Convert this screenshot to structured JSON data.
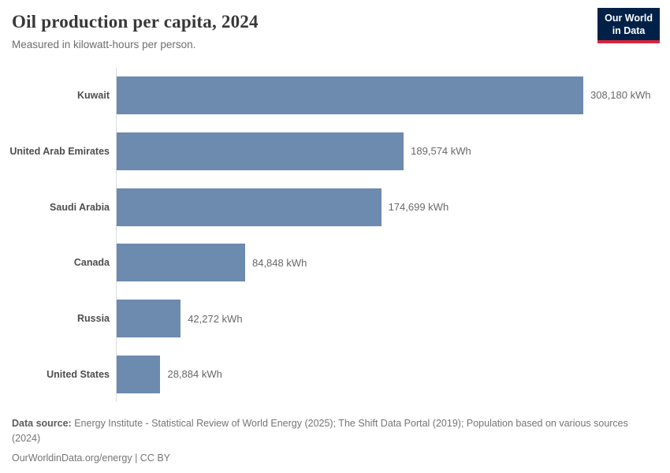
{
  "header": {
    "title": "Oil production per capita, 2024",
    "subtitle": "Measured in kilowatt-hours per person.",
    "logo_line1": "Our World",
    "logo_line2": "in Data"
  },
  "chart_data": {
    "type": "bar",
    "orientation": "horizontal",
    "title": "Oil production per capita, 2024",
    "subtitle": "Measured in kilowatt-hours per person.",
    "unit": "kWh",
    "categories": [
      "Kuwait",
      "United Arab Emirates",
      "Saudi Arabia",
      "Canada",
      "Russia",
      "United States"
    ],
    "values": [
      308180,
      189574,
      174699,
      84848,
      42272,
      28884
    ],
    "value_labels": [
      "308,180 kWh",
      "189,574 kWh",
      "174,699 kWh",
      "84,848 kWh",
      "42,272 kWh",
      "28,884 kWh"
    ],
    "xlim": [
      0,
      308180
    ],
    "grid": false,
    "legend": "none",
    "bar_color": "#6d8aaf"
  },
  "footer": {
    "data_source_label": "Data source:",
    "data_source_text": " Energy Institute - Statistical Review of World Energy (2025); The Shift Data Portal (2019); Population based on various sources (2024)",
    "link_line": "OurWorldinData.org/energy | CC BY"
  },
  "colors": {
    "bar": "#6d8aaf",
    "logo_background": "#002147",
    "logo_accent": "#d7263d",
    "axis_line": "#dcdcdc",
    "title_text": "#383838",
    "muted_text": "#757575"
  }
}
